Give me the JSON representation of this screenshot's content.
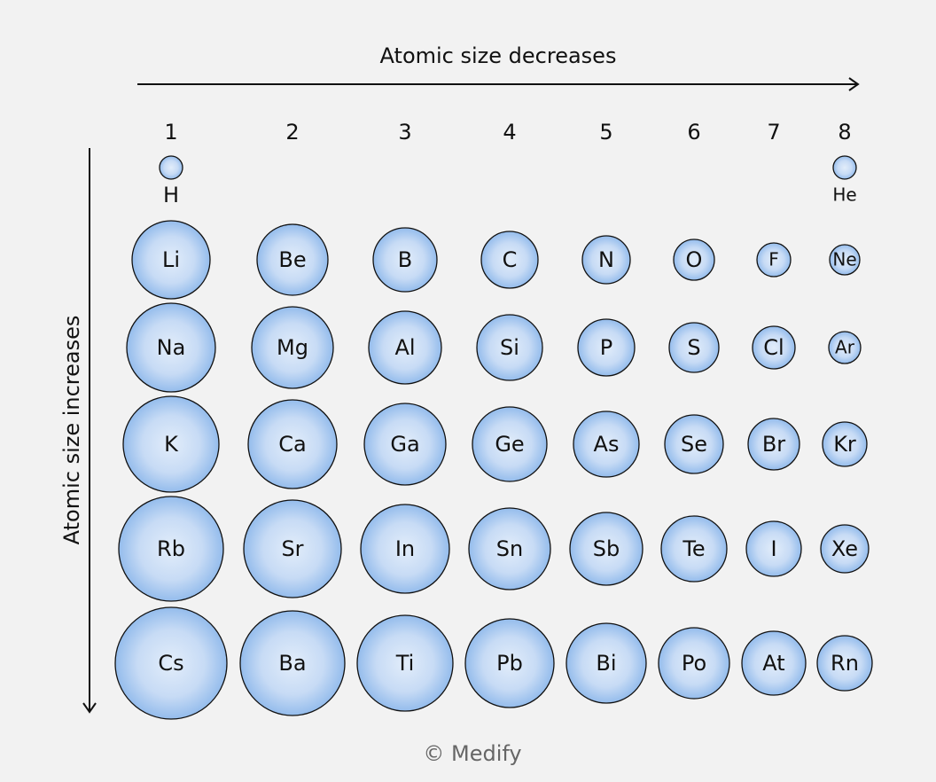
{
  "header": {
    "title": "Atomic size decreases",
    "side_label": "Atomic size increases"
  },
  "groups": [
    1,
    2,
    3,
    4,
    5,
    6,
    7,
    8
  ],
  "period1": [
    "H",
    "He"
  ],
  "rows": [
    [
      "Li",
      "Be",
      "B",
      "C",
      "N",
      "O",
      "F",
      "Ne"
    ],
    [
      "Na",
      "Mg",
      "Al",
      "Si",
      "P",
      "S",
      "Cl",
      "Ar"
    ],
    [
      "K",
      "Ca",
      "Ga",
      "Ge",
      "As",
      "Se",
      "Br",
      "Kr"
    ],
    [
      "Rb",
      "Sr",
      "In",
      "Sn",
      "Sb",
      "Te",
      "I",
      "Xe"
    ],
    [
      "Cs",
      "Ba",
      "Ti",
      "Pb",
      "Bi",
      "Po",
      "At",
      "Rn"
    ]
  ],
  "footer": "© Medify"
}
